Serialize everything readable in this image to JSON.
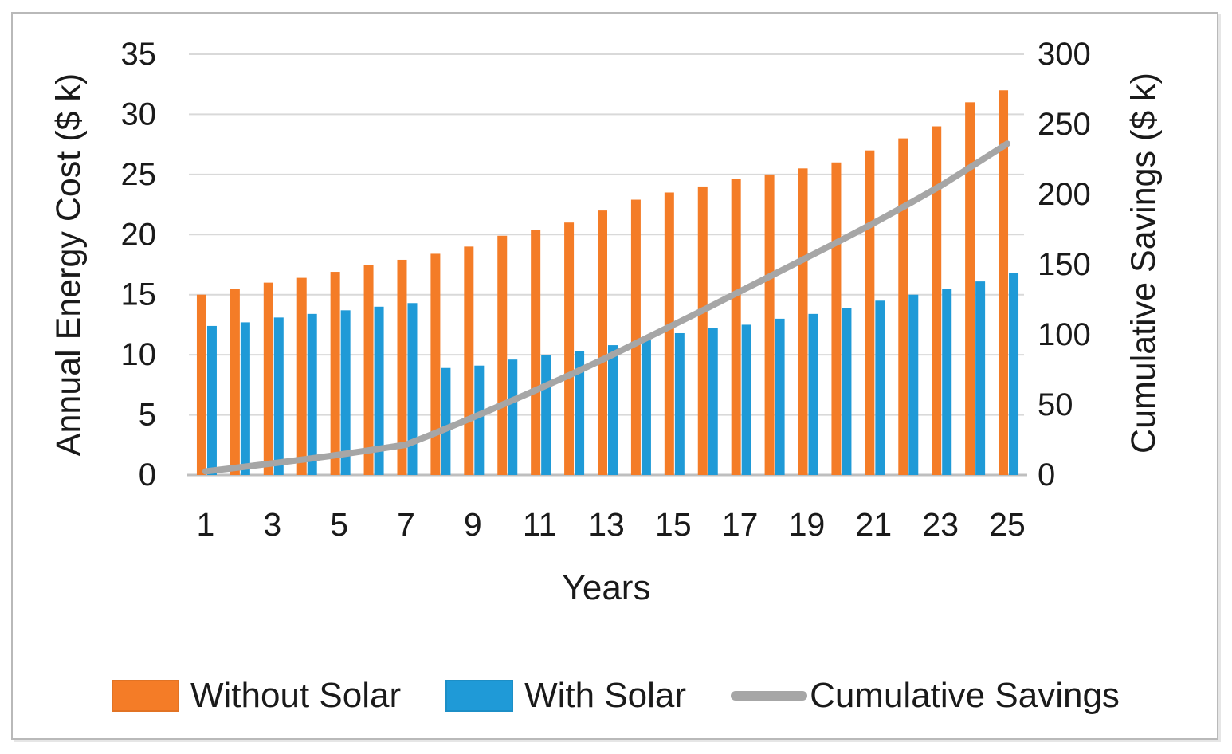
{
  "chart_data": {
    "type": "combo-bar-line",
    "xlabel": "Years",
    "x": [
      1,
      2,
      3,
      4,
      5,
      6,
      7,
      8,
      9,
      10,
      11,
      12,
      13,
      14,
      15,
      16,
      17,
      18,
      19,
      20,
      21,
      22,
      23,
      24,
      25
    ],
    "x_shown_ticks": [
      1,
      3,
      5,
      7,
      9,
      11,
      13,
      15,
      17,
      19,
      21,
      23,
      25
    ],
    "left_axis": {
      "label": "Annual Energy Cost ($ k)",
      "min": 0,
      "max": 35,
      "ticks": [
        0,
        5,
        10,
        15,
        20,
        25,
        30,
        35
      ]
    },
    "right_axis": {
      "label": "Cumulative Savings ($ k)",
      "min": 0,
      "max": 300,
      "ticks": [
        0,
        50,
        100,
        150,
        200,
        250,
        300
      ]
    },
    "grid": true,
    "legend_position": "bottom",
    "series": [
      {
        "name": "Without Solar",
        "type": "bar",
        "axis": "left",
        "color": "#F47C27",
        "values": [
          15.0,
          15.5,
          16.0,
          16.4,
          16.9,
          17.5,
          17.9,
          18.4,
          19.0,
          19.9,
          20.4,
          21.0,
          22.0,
          22.9,
          23.5,
          24.0,
          24.6,
          25.0,
          25.5,
          26.0,
          27.0,
          28.0,
          29.0,
          31.0,
          32.0
        ]
      },
      {
        "name": "With Solar",
        "type": "bar",
        "axis": "left",
        "color": "#1F9AD7",
        "values": [
          12.4,
          12.7,
          13.1,
          13.4,
          13.7,
          14.0,
          14.3,
          8.9,
          9.1,
          9.6,
          10.0,
          10.3,
          10.8,
          11.2,
          11.8,
          12.2,
          12.5,
          13.0,
          13.4,
          13.9,
          14.5,
          15.0,
          15.5,
          16.1,
          16.8
        ]
      },
      {
        "name": "Cumulative Savings",
        "type": "line",
        "axis": "right",
        "color": "#A6A6A6",
        "values": [
          2.6,
          5.4,
          8.3,
          11.3,
          14.5,
          18.0,
          21.6,
          31.1,
          41.0,
          51.3,
          61.7,
          72.4,
          83.6,
          95.3,
          107.0,
          118.8,
          130.9,
          142.9,
          155.0,
          167.1,
          179.6,
          192.6,
          206.1,
          221.0,
          236.2
        ]
      }
    ],
    "colors": {
      "gridline": "#D9D9D9",
      "axis_line": "#BFBFBF",
      "text": "#1a1a1a"
    }
  }
}
